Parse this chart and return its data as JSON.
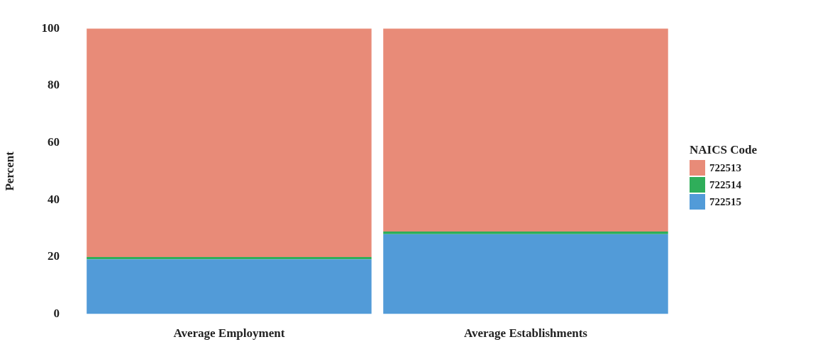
{
  "chart_data": {
    "type": "bar",
    "stacked": true,
    "ylabel": "Percent",
    "legend_title": "NAICS Code",
    "categories": [
      "Average Employment",
      "Average Establishments"
    ],
    "series": [
      {
        "name": "722515",
        "color": "#529bd8",
        "values": [
          19.2,
          28.0
        ]
      },
      {
        "name": "722514",
        "color": "#2fae5a",
        "values": [
          0.8,
          0.9
        ]
      },
      {
        "name": "722513",
        "color": "#e88b78",
        "values": [
          80.0,
          71.1
        ]
      }
    ],
    "ylim": [
      0,
      100
    ],
    "yticks": [
      0,
      20,
      40,
      60,
      80,
      100
    ],
    "grid": false,
    "legend": "right"
  }
}
